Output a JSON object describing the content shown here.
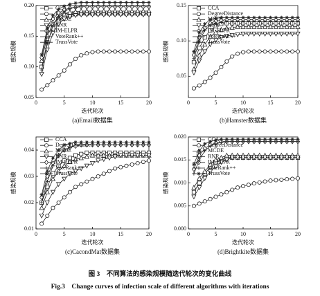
{
  "chart_data": [
    {
      "type": "line",
      "title": "(a)Email数据集",
      "x_label": "迭代轮次",
      "y_label": "感染规模",
      "xlim": [
        0,
        20
      ],
      "xticks": [
        0,
        5,
        10,
        15,
        20
      ],
      "ylim": [
        0.05,
        0.2
      ],
      "yticks": [
        {
          "value": 0.05,
          "label": "0.05"
        },
        {
          "value": 0.1,
          "label": "0.10"
        },
        {
          "value": 0.15,
          "label": "0.15"
        },
        {
          "value": 0.2,
          "label": "0.20"
        }
      ],
      "legend": "upper left",
      "x": [
        1,
        2,
        3,
        4,
        5,
        6,
        7,
        8,
        9,
        10,
        11,
        12,
        13,
        14,
        15,
        16,
        17,
        18,
        19,
        20
      ],
      "series": [
        {
          "name": "CCA",
          "color": "#222222",
          "marker": "square",
          "values": [
            0.1,
            0.14,
            0.163,
            0.175,
            0.181,
            0.184,
            0.186,
            0.187,
            0.187,
            0.187,
            0.187,
            0.187,
            0.187,
            0.187,
            0.187,
            0.187,
            0.187,
            0.187,
            0.187,
            0.187
          ]
        },
        {
          "name": "DegreeDistance",
          "color": "#222222",
          "marker": "circle",
          "values": [
            0.063,
            0.07,
            0.078,
            0.086,
            0.094,
            0.104,
            0.113,
            0.119,
            0.122,
            0.124,
            0.125,
            0.125,
            0.125,
            0.125,
            0.125,
            0.125,
            0.125,
            0.125,
            0.125,
            0.125
          ]
        },
        {
          "name": "MCDE",
          "color": "#222222",
          "marker": "triangle",
          "values": [
            0.11,
            0.15,
            0.17,
            0.181,
            0.186,
            0.189,
            0.19,
            0.191,
            0.191,
            0.191,
            0.191,
            0.191,
            0.191,
            0.191,
            0.191,
            0.191,
            0.191,
            0.191,
            0.191,
            0.191
          ]
        },
        {
          "name": "RNR",
          "color": "#222222",
          "marker": "down-triangle",
          "values": [
            0.088,
            0.128,
            0.155,
            0.17,
            0.178,
            0.182,
            0.184,
            0.185,
            0.185,
            0.185,
            0.185,
            0.185,
            0.185,
            0.185,
            0.185,
            0.185,
            0.185,
            0.185,
            0.185,
            0.185
          ]
        },
        {
          "name": "IM-ELPR",
          "color": "#222222",
          "marker": "diamond",
          "values": [
            0.115,
            0.158,
            0.178,
            0.188,
            0.193,
            0.196,
            0.197,
            0.198,
            0.198,
            0.198,
            0.198,
            0.198,
            0.198,
            0.198,
            0.198,
            0.198,
            0.198,
            0.198,
            0.198,
            0.198
          ]
        },
        {
          "name": "VoteRank++",
          "color": "#222222",
          "marker": "plus",
          "values": [
            0.095,
            0.138,
            0.167,
            0.182,
            0.19,
            0.195,
            0.197,
            0.199,
            0.2,
            0.2,
            0.2,
            0.2,
            0.2,
            0.2,
            0.2,
            0.2,
            0.2,
            0.2,
            0.2,
            0.2
          ]
        },
        {
          "name": "TrussVote",
          "color": "#222222",
          "marker": "star",
          "values": [
            0.12,
            0.163,
            0.184,
            0.194,
            0.199,
            0.202,
            0.204,
            0.205,
            0.205,
            0.205,
            0.205,
            0.205,
            0.205,
            0.205,
            0.205,
            0.205,
            0.205,
            0.205,
            0.205,
            0.205
          ]
        }
      ]
    },
    {
      "type": "line",
      "title": "(b)Hamster数据集",
      "x_label": "迭代轮次",
      "y_label": "感染规模",
      "xlim": [
        0,
        20
      ],
      "xticks": [
        0,
        5,
        10,
        15,
        20
      ],
      "ylim": [
        0.02,
        0.15
      ],
      "yticks": [
        {
          "value": 0.05,
          "label": "0.05"
        },
        {
          "value": 0.1,
          "label": "0.10"
        },
        {
          "value": 0.15,
          "label": "0.15"
        }
      ],
      "legend": "upper left",
      "x": [
        1,
        2,
        3,
        4,
        5,
        6,
        7,
        8,
        9,
        10,
        11,
        12,
        13,
        14,
        15,
        16,
        17,
        18,
        19,
        20
      ],
      "series": [
        {
          "name": "CCA",
          "color": "#222222",
          "marker": "square",
          "values": [
            0.07,
            0.09,
            0.105,
            0.115,
            0.121,
            0.124,
            0.125,
            0.125,
            0.125,
            0.125,
            0.125,
            0.125,
            0.125,
            0.125,
            0.125,
            0.125,
            0.125,
            0.125,
            0.125,
            0.125
          ]
        },
        {
          "name": "DegreeDistance",
          "color": "#222222",
          "marker": "circle",
          "values": [
            0.033,
            0.037,
            0.042,
            0.048,
            0.055,
            0.063,
            0.071,
            0.078,
            0.082,
            0.084,
            0.085,
            0.085,
            0.085,
            0.085,
            0.085,
            0.085,
            0.085,
            0.085,
            0.085,
            0.085
          ]
        },
        {
          "name": "MCDE",
          "color": "#222222",
          "marker": "triangle",
          "values": [
            0.06,
            0.08,
            0.095,
            0.106,
            0.112,
            0.116,
            0.118,
            0.119,
            0.12,
            0.12,
            0.12,
            0.12,
            0.12,
            0.12,
            0.12,
            0.12,
            0.12,
            0.12,
            0.12,
            0.12
          ]
        },
        {
          "name": "RNR",
          "color": "#222222",
          "marker": "down-triangle",
          "values": [
            0.055,
            0.072,
            0.085,
            0.095,
            0.101,
            0.105,
            0.107,
            0.108,
            0.109,
            0.11,
            0.11,
            0.11,
            0.11,
            0.11,
            0.11,
            0.11,
            0.11,
            0.11,
            0.11,
            0.11
          ]
        },
        {
          "name": "IM-ELPR",
          "color": "#222222",
          "marker": "diamond",
          "values": [
            0.08,
            0.105,
            0.118,
            0.125,
            0.128,
            0.129,
            0.13,
            0.13,
            0.13,
            0.13,
            0.13,
            0.13,
            0.13,
            0.13,
            0.13,
            0.13,
            0.13,
            0.13,
            0.13,
            0.13
          ]
        },
        {
          "name": "VoteRank++",
          "color": "#222222",
          "marker": "plus",
          "values": [
            0.075,
            0.1,
            0.115,
            0.122,
            0.125,
            0.126,
            0.127,
            0.127,
            0.127,
            0.127,
            0.127,
            0.127,
            0.127,
            0.127,
            0.127,
            0.127,
            0.127,
            0.127,
            0.127,
            0.127
          ]
        },
        {
          "name": "TrussVote",
          "color": "#222222",
          "marker": "star",
          "values": [
            0.085,
            0.112,
            0.124,
            0.13,
            0.132,
            0.133,
            0.133,
            0.133,
            0.133,
            0.133,
            0.133,
            0.133,
            0.133,
            0.133,
            0.133,
            0.133,
            0.133,
            0.133,
            0.133,
            0.133
          ]
        }
      ]
    },
    {
      "type": "line",
      "title": "(c)CacondMat数据集",
      "x_label": "迭代轮次",
      "y_label": "感染规模",
      "xlim": [
        0,
        20
      ],
      "xticks": [
        0,
        5,
        10,
        15,
        20
      ],
      "ylim": [
        0.01,
        0.045
      ],
      "yticks": [
        0.01,
        0.02,
        0.03,
        0.04
      ],
      "legend": "upper left",
      "x": [
        1,
        2,
        3,
        4,
        5,
        6,
        7,
        8,
        9,
        10,
        11,
        12,
        13,
        14,
        15,
        16,
        17,
        18,
        19,
        20
      ],
      "series": [
        {
          "name": "CCA",
          "color": "#222222",
          "marker": "square",
          "values": [
            0.02,
            0.026,
            0.031,
            0.034,
            0.036,
            0.037,
            0.038,
            0.0385,
            0.039,
            0.039,
            0.039,
            0.039,
            0.039,
            0.039,
            0.039,
            0.039,
            0.039,
            0.039,
            0.039,
            0.039
          ]
        },
        {
          "name": "DegreeDistance",
          "color": "#222222",
          "marker": "circle",
          "values": [
            0.012,
            0.015,
            0.018,
            0.02,
            0.022,
            0.024,
            0.026,
            0.027,
            0.028,
            0.029,
            0.03,
            0.031,
            0.032,
            0.033,
            0.0335,
            0.034,
            0.0345,
            0.035,
            0.0355,
            0.036
          ]
        },
        {
          "name": "MCDE",
          "color": "#222222",
          "marker": "triangle",
          "values": [
            0.018,
            0.024,
            0.029,
            0.032,
            0.034,
            0.0355,
            0.0365,
            0.037,
            0.0375,
            0.038,
            0.038,
            0.038,
            0.038,
            0.038,
            0.038,
            0.038,
            0.038,
            0.038,
            0.038,
            0.038
          ]
        },
        {
          "name": "RNR",
          "color": "#222222",
          "marker": "down-triangle",
          "values": [
            0.015,
            0.02,
            0.024,
            0.027,
            0.029,
            0.031,
            0.032,
            0.033,
            0.034,
            0.035,
            0.036,
            0.0365,
            0.037,
            0.0375,
            0.038,
            0.038,
            0.038,
            0.038,
            0.038,
            0.038
          ]
        },
        {
          "name": "IM-ELPR",
          "color": "#222222",
          "marker": "diamond",
          "values": [
            0.022,
            0.03,
            0.035,
            0.038,
            0.04,
            0.041,
            0.0415,
            0.042,
            0.042,
            0.042,
            0.042,
            0.042,
            0.042,
            0.042,
            0.042,
            0.042,
            0.042,
            0.042,
            0.042,
            0.042
          ]
        },
        {
          "name": "VoteRank++",
          "color": "#222222",
          "marker": "plus",
          "values": [
            0.02,
            0.028,
            0.034,
            0.038,
            0.04,
            0.041,
            0.042,
            0.042,
            0.042,
            0.042,
            0.042,
            0.042,
            0.042,
            0.042,
            0.042,
            0.042,
            0.042,
            0.042,
            0.042,
            0.042
          ]
        },
        {
          "name": "TrussVote",
          "color": "#222222",
          "marker": "star",
          "values": [
            0.023,
            0.032,
            0.037,
            0.04,
            0.042,
            0.0425,
            0.043,
            0.043,
            0.043,
            0.043,
            0.043,
            0.043,
            0.043,
            0.043,
            0.043,
            0.043,
            0.043,
            0.043,
            0.043,
            0.043
          ]
        }
      ]
    },
    {
      "type": "line",
      "title": "(d)Brightkite数据集",
      "x_label": "迭代轮次",
      "y_label": "感染规模",
      "xlim": [
        0,
        20
      ],
      "xticks": [
        0,
        5,
        10,
        15,
        20
      ],
      "ylim": [
        0,
        0.02
      ],
      "yticks": [
        {
          "value": 0,
          "label": "0.000"
        },
        {
          "value": 0.005,
          "label": "0.005"
        },
        {
          "value": 0.01,
          "label": "0.010"
        },
        {
          "value": 0.015,
          "label": "0.015"
        },
        {
          "value": 0.02,
          "label": "0.020"
        }
      ],
      "legend": "upper left",
      "x": [
        1,
        2,
        3,
        4,
        5,
        6,
        7,
        8,
        9,
        10,
        11,
        12,
        13,
        14,
        15,
        16,
        17,
        18,
        19,
        20
      ],
      "series": [
        {
          "name": "CCA",
          "color": "#222222",
          "marker": "square",
          "values": [
            0.008,
            0.01,
            0.012,
            0.0135,
            0.0145,
            0.015,
            0.0155,
            0.0155,
            0.0155,
            0.0155,
            0.0155,
            0.0155,
            0.0155,
            0.0155,
            0.0155,
            0.0155,
            0.0155,
            0.0155,
            0.0155,
            0.0155
          ]
        },
        {
          "name": "DegreeDistance",
          "color": "#222222",
          "marker": "circle",
          "values": [
            0.005,
            0.0055,
            0.006,
            0.0065,
            0.007,
            0.0075,
            0.008,
            0.0085,
            0.009,
            0.0093,
            0.0096,
            0.0099,
            0.0101,
            0.0103,
            0.0105,
            0.0106,
            0.0107,
            0.0108,
            0.0109,
            0.011
          ]
        },
        {
          "name": "MCDE",
          "color": "#222222",
          "marker": "triangle",
          "values": [
            0.009,
            0.011,
            0.0125,
            0.014,
            0.015,
            0.0155,
            0.016,
            0.016,
            0.016,
            0.016,
            0.016,
            0.016,
            0.016,
            0.016,
            0.016,
            0.016,
            0.016,
            0.016,
            0.016,
            0.016
          ]
        },
        {
          "name": "RNR",
          "color": "#222222",
          "marker": "down-triangle",
          "values": [
            0.007,
            0.009,
            0.011,
            0.0125,
            0.0135,
            0.0145,
            0.015,
            0.0155,
            0.0155,
            0.0155,
            0.0155,
            0.0155,
            0.0155,
            0.0155,
            0.0155,
            0.0155,
            0.0155,
            0.0155,
            0.0155,
            0.0155
          ]
        },
        {
          "name": "IM-ELPR",
          "color": "#222222",
          "marker": "diamond",
          "values": [
            0.013,
            0.016,
            0.0175,
            0.0183,
            0.0187,
            0.019,
            0.019,
            0.019,
            0.019,
            0.019,
            0.019,
            0.019,
            0.019,
            0.019,
            0.019,
            0.019,
            0.019,
            0.019,
            0.019,
            0.019
          ]
        },
        {
          "name": "VoteRank++",
          "color": "#222222",
          "marker": "plus",
          "values": [
            0.012,
            0.015,
            0.017,
            0.018,
            0.0185,
            0.0188,
            0.019,
            0.019,
            0.019,
            0.019,
            0.019,
            0.019,
            0.019,
            0.019,
            0.019,
            0.019,
            0.019,
            0.019,
            0.019,
            0.019
          ]
        },
        {
          "name": "TrussVote",
          "color": "#222222",
          "marker": "star",
          "values": [
            0.014,
            0.017,
            0.0185,
            0.019,
            0.0193,
            0.0195,
            0.0195,
            0.0195,
            0.0195,
            0.0195,
            0.0195,
            0.0195,
            0.0195,
            0.0195,
            0.0195,
            0.0195,
            0.0195,
            0.0195,
            0.0195,
            0.0195
          ]
        }
      ]
    }
  ],
  "figure_title": "图 3　不同算法的感染规模随迭代轮次的变化曲线",
  "figure_title_en": "Fig.3　Change curves of infection scale of different algorithms with iterations"
}
